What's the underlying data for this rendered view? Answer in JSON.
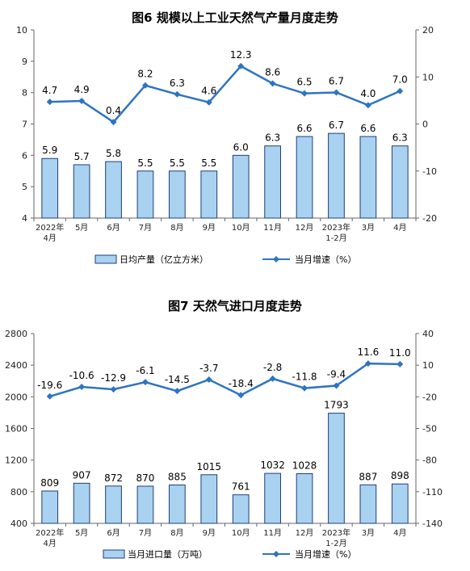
{
  "colors": {
    "bar_fill": "#a9d2f1",
    "bar_stroke": "#1f3d7a",
    "line": "#2e74c0",
    "axis": "#666666"
  },
  "chart_data": [
    {
      "type": "bar+line",
      "title": "图6 规模以上工业天然气产量月度走势",
      "categories": [
        "2022年\n4月",
        "5月",
        "6月",
        "7月",
        "8月",
        "9月",
        "10月",
        "11月",
        "12月",
        "2023年\n1-2月",
        "3月",
        "4月"
      ],
      "series": [
        {
          "name": "日均产量（亿立方米）",
          "type": "bar",
          "axis": "left",
          "values": [
            5.9,
            5.7,
            5.8,
            5.5,
            5.5,
            5.5,
            6.0,
            6.3,
            6.6,
            6.7,
            6.6,
            6.3
          ],
          "labels": [
            "5.9",
            "5.7",
            "5.8",
            "5.5",
            "5.5",
            "5.5",
            "6.0",
            "6.3",
            "6.6",
            "6.7",
            "6.6",
            "6.3"
          ]
        },
        {
          "name": "当月增速（%）",
          "type": "line",
          "axis": "right",
          "values": [
            4.7,
            4.9,
            0.4,
            8.2,
            6.3,
            4.6,
            12.3,
            8.6,
            6.5,
            6.7,
            4.0,
            7.0
          ],
          "labels": [
            "4.7",
            "4.9",
            "0.4",
            "8.2",
            "6.3",
            "4.6",
            "12.3",
            "8.6",
            "6.5",
            "6.7",
            "4.0",
            "7.0"
          ]
        }
      ],
      "yleft": {
        "min": 4,
        "max": 10,
        "ticks": [
          "4",
          "5",
          "6",
          "7",
          "8",
          "9",
          "10"
        ]
      },
      "yright": {
        "min": -20,
        "max": 20,
        "ticks": [
          "-20",
          "-10",
          "0",
          "10",
          "20"
        ]
      },
      "legend": [
        "日均产量（亿立方米）",
        "当月增速（%）"
      ]
    },
    {
      "type": "bar+line",
      "title": "图7 天然气进口月度走势",
      "categories": [
        "2022年\n4月",
        "5月",
        "6月",
        "7月",
        "8月",
        "9月",
        "10月",
        "11月",
        "12月",
        "2023年\n1-2月",
        "3月",
        "4月"
      ],
      "series": [
        {
          "name": "当月进口量（万吨）",
          "type": "bar",
          "axis": "left",
          "values": [
            809,
            907,
            872,
            870,
            885,
            1015,
            761,
            1032,
            1028,
            1793,
            887,
            898
          ],
          "labels": [
            "809",
            "907",
            "872",
            "870",
            "885",
            "1015",
            "761",
            "1032",
            "1028",
            "1793",
            "887",
            "898"
          ]
        },
        {
          "name": "当月增速（%）",
          "type": "line",
          "axis": "right",
          "values": [
            -19.6,
            -10.6,
            -12.9,
            -6.1,
            -14.5,
            -3.7,
            -18.4,
            -2.8,
            -11.8,
            -9.4,
            11.6,
            11.0
          ],
          "labels": [
            "-19.6",
            "-10.6",
            "-12.9",
            "-6.1",
            "-14.5",
            "-3.7",
            "-18.4",
            "-2.8",
            "-11.8",
            "-9.4",
            "11.6",
            "11.0"
          ]
        }
      ],
      "yleft": {
        "min": 400,
        "max": 2800,
        "ticks": [
          "400",
          "800",
          "1200",
          "1600",
          "2000",
          "2400",
          "2800"
        ]
      },
      "yright": {
        "min": -140,
        "max": 40,
        "ticks": [
          "-140",
          "-110",
          "-80",
          "-50",
          "-20",
          "10",
          "40"
        ]
      },
      "legend": [
        "当月进口量（万吨）",
        "当月增速（%）"
      ]
    }
  ]
}
